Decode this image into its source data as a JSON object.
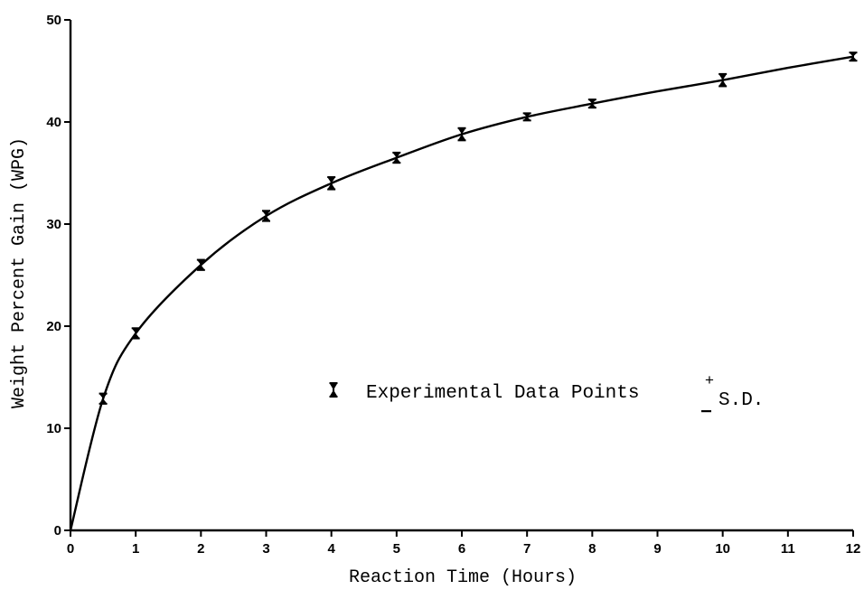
{
  "chart_data": {
    "type": "line",
    "title": "",
    "xlabel": "Reaction Time (Hours)",
    "ylabel": "Weight Percent Gain (WPG)",
    "xlim": [
      0,
      12
    ],
    "ylim": [
      0,
      50
    ],
    "xticks": [
      0,
      1,
      2,
      3,
      4,
      5,
      6,
      7,
      8,
      9,
      10,
      11,
      12
    ],
    "yticks": [
      0,
      10,
      20,
      30,
      40,
      50
    ],
    "grid": false,
    "legend": {
      "label": "Experimental Data Points",
      "suffix": "S.D.",
      "placement": "center-right"
    },
    "points": [
      {
        "x": 0.5,
        "y": 12.9,
        "sd": 0.5
      },
      {
        "x": 1,
        "y": 19.3,
        "sd": 0.5
      },
      {
        "x": 2,
        "y": 26.0,
        "sd": 0.5
      },
      {
        "x": 3,
        "y": 30.8,
        "sd": 0.5
      },
      {
        "x": 4,
        "y": 34.0,
        "sd": 0.6
      },
      {
        "x": 5,
        "y": 36.5,
        "sd": 0.5
      },
      {
        "x": 6,
        "y": 38.8,
        "sd": 0.6
      },
      {
        "x": 7,
        "y": 40.5,
        "sd": 0.3
      },
      {
        "x": 8,
        "y": 41.8,
        "sd": 0.4
      },
      {
        "x": 10,
        "y": 44.1,
        "sd": 0.6
      },
      {
        "x": 12,
        "y": 46.4,
        "sd": 0.4
      }
    ],
    "curve": [
      [
        0,
        0
      ],
      [
        0.5,
        12.9
      ],
      [
        1,
        19.3
      ],
      [
        2,
        26.0
      ],
      [
        3,
        30.8
      ],
      [
        4,
        34.0
      ],
      [
        5,
        36.5
      ],
      [
        6,
        38.8
      ],
      [
        7,
        40.5
      ],
      [
        8,
        41.8
      ],
      [
        9,
        43.0
      ],
      [
        10,
        44.1
      ],
      [
        11,
        45.3
      ],
      [
        12,
        46.4
      ]
    ]
  }
}
